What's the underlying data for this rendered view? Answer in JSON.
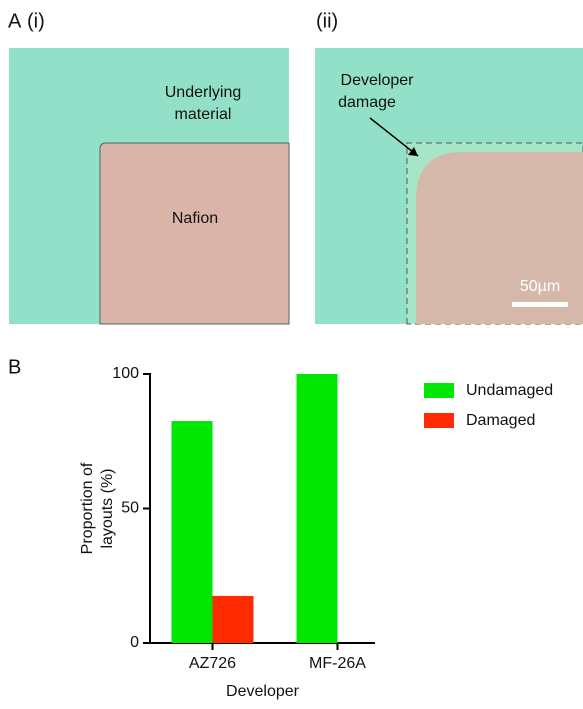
{
  "figure": {
    "panel_a": "A",
    "sub_i": "(i)",
    "sub_ii": "(ii)",
    "underlying": [
      "Underlying",
      "material"
    ],
    "nafion": "Nafion",
    "damage": [
      "Developer",
      "damage"
    ],
    "scale": "50µm",
    "panel_b": "B"
  },
  "chart_data": {
    "type": "bar",
    "categories": [
      "AZ726",
      "MF-26A"
    ],
    "series": [
      {
        "name": "Undamaged",
        "color": "#00e600",
        "values": [
          82.5,
          100
        ]
      },
      {
        "name": "Damaged",
        "color": "#ff2a00",
        "values": [
          17.5,
          0
        ]
      }
    ],
    "xlabel": "Developer",
    "ylabel": [
      "Proportion of",
      "layouts (%)"
    ],
    "ylim": [
      0,
      100
    ],
    "yticks": [
      0,
      50,
      100
    ],
    "legend": "upper right"
  }
}
